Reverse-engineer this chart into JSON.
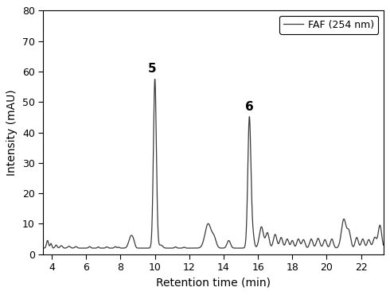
{
  "title": "",
  "xlabel": "Retention time (min)",
  "ylabel": "Intensity (mAU)",
  "xlim": [
    3.5,
    23.3
  ],
  "ylim": [
    0,
    80
  ],
  "yticks": [
    0,
    10,
    20,
    30,
    40,
    50,
    60,
    70,
    80
  ],
  "xticks": [
    4,
    6,
    8,
    10,
    12,
    14,
    16,
    18,
    20,
    22
  ],
  "line_color": "#3a3a3a",
  "line_width": 0.9,
  "legend_label": "FAF (254 nm)",
  "peak1_x": 10.0,
  "peak1_y": 57.0,
  "peak1_label": "5",
  "peak2_x": 15.5,
  "peak2_y": 44.5,
  "peak2_label": "6",
  "background_color": "#ffffff",
  "baseline": 2.0
}
